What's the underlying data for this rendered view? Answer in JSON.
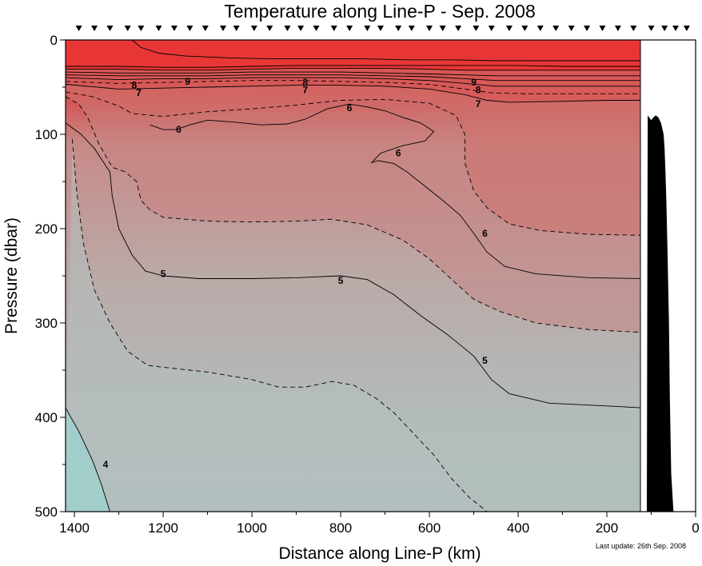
{
  "chart_data": {
    "type": "contour",
    "title": "Temperature along Line-P - Sep. 2008",
    "xlabel": "Distance along Line-P (km)",
    "ylabel": "Pressure (dbar)",
    "xlim": [
      1420,
      0
    ],
    "ylim": [
      500,
      0
    ],
    "x_ticks": [
      1400,
      1200,
      1000,
      800,
      600,
      400,
      200,
      0
    ],
    "y_ticks": [
      0,
      100,
      200,
      300,
      400,
      500
    ],
    "data_extent_x": [
      1420,
      120
    ],
    "station_markers_km": [
      1390,
      1355,
      1320,
      1280,
      1250,
      1210,
      1175,
      1140,
      1105,
      1065,
      1035,
      995,
      960,
      920,
      890,
      855,
      815,
      780,
      740,
      710,
      670,
      640,
      600,
      570,
      535,
      495,
      460,
      420,
      385,
      350,
      315,
      280,
      245,
      210,
      175,
      140,
      100,
      70,
      45,
      20
    ],
    "colors": {
      "warm": "#ee2a2a",
      "mid": "#cd7a76",
      "cool": "#b4c0c0",
      "coldest": "#9fd0cc",
      "bathymetry": "#000000"
    },
    "contour_levels": [
      {
        "value": "4",
        "style": "solid"
      },
      {
        "value": "4.5",
        "style": "dashed"
      },
      {
        "value": "5",
        "style": "solid"
      },
      {
        "value": "5.5",
        "style": "dashed"
      },
      {
        "value": "6",
        "style": "solid"
      },
      {
        "value": "6.5",
        "style": "dashed"
      },
      {
        "value": "7",
        "style": "solid"
      },
      {
        "value": "8",
        "style": "solid"
      },
      {
        "value": "9",
        "style": "solid"
      }
    ],
    "contours": [
      {
        "level": "4",
        "style": "solid",
        "points": [
          [
            1420,
            390
          ],
          [
            1390,
            415
          ],
          [
            1360,
            445
          ],
          [
            1340,
            470
          ],
          [
            1320,
            500
          ]
        ]
      },
      {
        "level": "4.5",
        "style": "dashed",
        "points": [
          [
            1405,
            105
          ],
          [
            1395,
            160
          ],
          [
            1380,
            215
          ],
          [
            1355,
            265
          ],
          [
            1320,
            300
          ],
          [
            1280,
            330
          ],
          [
            1235,
            345
          ],
          [
            1180,
            348
          ],
          [
            1100,
            352
          ],
          [
            1000,
            360
          ],
          [
            940,
            368
          ],
          [
            880,
            368
          ],
          [
            820,
            362
          ],
          [
            770,
            366
          ],
          [
            720,
            380
          ],
          [
            680,
            395
          ],
          [
            640,
            415
          ],
          [
            590,
            440
          ],
          [
            550,
            465
          ],
          [
            510,
            485
          ],
          [
            470,
            500
          ]
        ]
      },
      {
        "level": "5",
        "style": "solid",
        "points": [
          [
            1420,
            88
          ],
          [
            1385,
            100
          ],
          [
            1355,
            115
          ],
          [
            1320,
            140
          ],
          [
            1315,
            165
          ],
          [
            1300,
            200
          ],
          [
            1270,
            228
          ],
          [
            1240,
            245
          ],
          [
            1200,
            250
          ],
          [
            1120,
            253
          ],
          [
            1000,
            253
          ],
          [
            900,
            252
          ],
          [
            800,
            250
          ],
          [
            740,
            254
          ],
          [
            680,
            270
          ],
          [
            620,
            292
          ],
          [
            560,
            312
          ],
          [
            500,
            335
          ],
          [
            460,
            360
          ],
          [
            420,
            375
          ],
          [
            330,
            385
          ],
          [
            200,
            388
          ],
          [
            120,
            390
          ]
        ]
      },
      {
        "level": "5.5",
        "style": "dashed",
        "points": [
          [
            1420,
            60
          ],
          [
            1390,
            68
          ],
          [
            1370,
            82
          ],
          [
            1345,
            110
          ],
          [
            1315,
            135
          ],
          [
            1285,
            140
          ],
          [
            1260,
            150
          ],
          [
            1250,
            170
          ],
          [
            1230,
            180
          ],
          [
            1200,
            188
          ],
          [
            1100,
            192
          ],
          [
            1000,
            193
          ],
          [
            900,
            192
          ],
          [
            820,
            190
          ],
          [
            740,
            196
          ],
          [
            660,
            212
          ],
          [
            600,
            232
          ],
          [
            540,
            258
          ],
          [
            500,
            275
          ],
          [
            440,
            288
          ],
          [
            360,
            300
          ],
          [
            240,
            307
          ],
          [
            120,
            310
          ]
        ]
      },
      {
        "level": "6",
        "style": "solid",
        "points": [
          [
            1230,
            90
          ],
          [
            1200,
            95
          ],
          [
            1170,
            95
          ],
          [
            1140,
            90
          ],
          [
            1100,
            85
          ],
          [
            1040,
            87
          ],
          [
            980,
            90
          ],
          [
            920,
            89
          ],
          [
            880,
            84
          ],
          [
            830,
            73
          ],
          [
            780,
            68
          ],
          [
            740,
            71
          ],
          [
            700,
            75
          ],
          [
            660,
            82
          ],
          [
            620,
            88
          ],
          [
            590,
            97
          ],
          [
            610,
            107
          ],
          [
            660,
            112
          ],
          [
            710,
            120
          ],
          [
            730,
            130
          ],
          [
            715,
            128
          ],
          [
            680,
            131
          ],
          [
            650,
            140
          ],
          [
            610,
            155
          ],
          [
            570,
            170
          ],
          [
            530,
            186
          ],
          [
            500,
            205
          ],
          [
            470,
            225
          ],
          [
            430,
            240
          ],
          [
            360,
            248
          ],
          [
            240,
            252
          ],
          [
            120,
            253
          ]
        ]
      },
      {
        "level": "6.5",
        "style": "dashed",
        "points": [
          [
            1420,
            55
          ],
          [
            1360,
            60
          ],
          [
            1300,
            70
          ],
          [
            1270,
            78
          ],
          [
            1200,
            81
          ],
          [
            1100,
            76
          ],
          [
            1000,
            73
          ],
          [
            900,
            69
          ],
          [
            800,
            64
          ],
          [
            700,
            63
          ],
          [
            600,
            67
          ],
          [
            540,
            80
          ],
          [
            520,
            100
          ],
          [
            520,
            130
          ],
          [
            500,
            160
          ],
          [
            470,
            178
          ],
          [
            420,
            195
          ],
          [
            350,
            202
          ],
          [
            240,
            206
          ],
          [
            120,
            207
          ]
        ]
      },
      {
        "level": "7",
        "style": "solid",
        "points": [
          [
            1420,
            47
          ],
          [
            1300,
            52
          ],
          [
            1200,
            51
          ],
          [
            1100,
            50
          ],
          [
            1000,
            49
          ],
          [
            900,
            48
          ],
          [
            800,
            48
          ],
          [
            700,
            49
          ],
          [
            600,
            52
          ],
          [
            520,
            58
          ],
          [
            470,
            64
          ],
          [
            420,
            66
          ],
          [
            300,
            65
          ],
          [
            200,
            64
          ],
          [
            120,
            64
          ]
        ]
      },
      {
        "level": "7.5",
        "style": "dashed",
        "points": [
          [
            1420,
            44
          ],
          [
            1300,
            46
          ],
          [
            1200,
            45
          ],
          [
            1100,
            44
          ],
          [
            1000,
            43
          ],
          [
            900,
            43
          ],
          [
            800,
            44
          ],
          [
            700,
            45
          ],
          [
            600,
            47
          ],
          [
            520,
            52
          ],
          [
            460,
            56
          ],
          [
            380,
            57
          ],
          [
            240,
            57
          ],
          [
            120,
            57
          ]
        ]
      },
      {
        "level": "8",
        "style": "solid",
        "points": [
          [
            1420,
            40
          ],
          [
            1300,
            42
          ],
          [
            1200,
            41
          ],
          [
            1100,
            41
          ],
          [
            1000,
            40
          ],
          [
            900,
            40
          ],
          [
            800,
            40
          ],
          [
            700,
            41
          ],
          [
            600,
            43
          ],
          [
            520,
            46
          ],
          [
            450,
            49
          ],
          [
            360,
            49
          ],
          [
            240,
            49
          ],
          [
            120,
            49
          ]
        ]
      },
      {
        "level": "8.5",
        "style": "solid",
        "points": [
          [
            1420,
            37
          ],
          [
            1300,
            38
          ],
          [
            1200,
            38
          ],
          [
            1100,
            38
          ],
          [
            1000,
            37
          ],
          [
            900,
            37
          ],
          [
            800,
            37
          ],
          [
            700,
            38
          ],
          [
            600,
            39
          ],
          [
            520,
            41
          ],
          [
            450,
            43
          ],
          [
            300,
            43
          ],
          [
            120,
            43
          ]
        ]
      },
      {
        "level": "9",
        "style": "solid",
        "points": [
          [
            1420,
            34
          ],
          [
            1300,
            35
          ],
          [
            1200,
            35
          ],
          [
            1100,
            35
          ],
          [
            1000,
            34
          ],
          [
            900,
            34
          ],
          [
            800,
            34
          ],
          [
            700,
            35
          ],
          [
            600,
            36
          ],
          [
            520,
            37
          ],
          [
            450,
            38
          ],
          [
            300,
            38
          ],
          [
            120,
            38
          ]
        ]
      },
      {
        "level": "10",
        "style": "solid",
        "points": [
          [
            1420,
            31
          ],
          [
            1300,
            31
          ],
          [
            1200,
            32
          ],
          [
            1100,
            32
          ],
          [
            1000,
            31
          ],
          [
            900,
            30
          ],
          [
            800,
            30
          ],
          [
            700,
            30
          ],
          [
            600,
            31
          ],
          [
            520,
            32
          ],
          [
            450,
            32
          ],
          [
            300,
            32
          ],
          [
            120,
            32
          ]
        ]
      },
      {
        "level": "11",
        "style": "solid",
        "points": [
          [
            1420,
            28
          ],
          [
            1300,
            28
          ],
          [
            1200,
            29
          ],
          [
            1100,
            29
          ],
          [
            1000,
            28
          ],
          [
            900,
            27
          ],
          [
            800,
            27
          ],
          [
            700,
            27
          ],
          [
            600,
            27
          ],
          [
            500,
            27
          ],
          [
            400,
            27
          ],
          [
            300,
            28
          ],
          [
            120,
            28
          ]
        ]
      },
      {
        "level": "12",
        "style": "solid",
        "points": [
          [
            1270,
            0
          ],
          [
            1250,
            8
          ],
          [
            1210,
            14
          ],
          [
            1150,
            17
          ],
          [
            1050,
            19
          ],
          [
            950,
            20
          ],
          [
            850,
            20
          ],
          [
            750,
            20
          ],
          [
            650,
            21
          ],
          [
            550,
            21
          ],
          [
            450,
            22
          ],
          [
            350,
            22
          ],
          [
            250,
            22
          ],
          [
            120,
            22
          ]
        ]
      }
    ],
    "contour_labels": [
      {
        "text": "4",
        "x": 1330,
        "y": 450
      },
      {
        "text": "5",
        "x": 1200,
        "y": 248
      },
      {
        "text": "5",
        "x": 800,
        "y": 255
      },
      {
        "text": "5",
        "x": 475,
        "y": 340
      },
      {
        "text": "6",
        "x": 1165,
        "y": 95
      },
      {
        "text": "6",
        "x": 780,
        "y": 72
      },
      {
        "text": "6",
        "x": 670,
        "y": 120
      },
      {
        "text": "6",
        "x": 475,
        "y": 205
      },
      {
        "text": "7",
        "x": 1255,
        "y": 56
      },
      {
        "text": "7",
        "x": 880,
        "y": 53
      },
      {
        "text": "7",
        "x": 490,
        "y": 68
      },
      {
        "text": "8",
        "x": 1265,
        "y": 48
      },
      {
        "text": "8",
        "x": 880,
        "y": 45
      },
      {
        "text": "8",
        "x": 490,
        "y": 53
      },
      {
        "text": "9",
        "x": 1145,
        "y": 44
      },
      {
        "text": "9",
        "x": 500,
        "y": 45
      }
    ],
    "bathymetry": [
      [
        50,
        500
      ],
      [
        55,
        460
      ],
      [
        58,
        380
      ],
      [
        60,
        300
      ],
      [
        63,
        230
      ],
      [
        66,
        170
      ],
      [
        68,
        140
      ],
      [
        70,
        115
      ],
      [
        72,
        100
      ],
      [
        78,
        88
      ],
      [
        84,
        82
      ],
      [
        90,
        80
      ],
      [
        95,
        82
      ],
      [
        100,
        85
      ],
      [
        108,
        80
      ],
      [
        110,
        500
      ]
    ]
  },
  "footnote": "Last update: 26th Sep. 2008"
}
